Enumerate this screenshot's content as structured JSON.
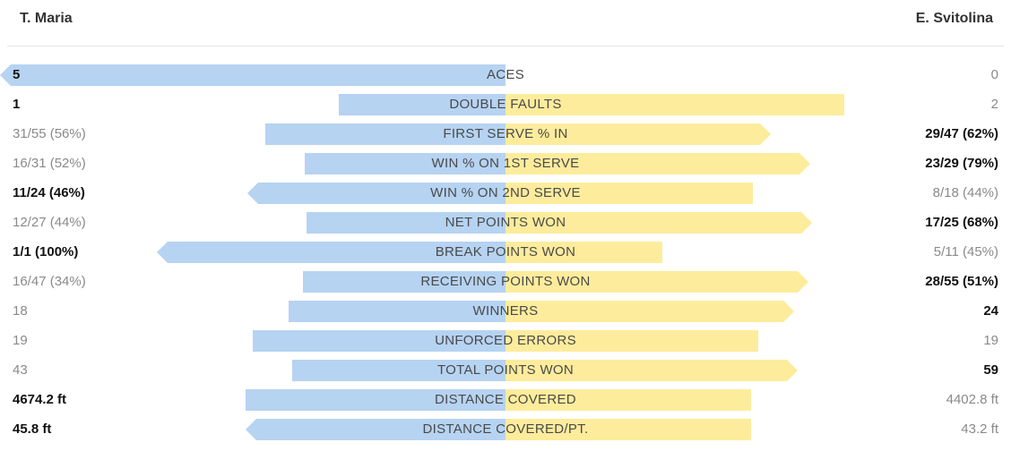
{
  "header": {
    "player_left": "T. Maria",
    "player_right": "E. Svitolina"
  },
  "colors": {
    "left_bar": "#b6d3f2",
    "right_bar": "#fdec9c",
    "leader_text": "#111111",
    "trailer_text": "#8a8a8a"
  },
  "chart_data": {
    "type": "bar",
    "layout": "diverging-horizontal",
    "series": [
      {
        "name": "T. Maria"
      },
      {
        "name": "E. Svitolina"
      }
    ],
    "stats": [
      {
        "label": "ACES",
        "left": "5",
        "right": "0",
        "left_share": 1.0,
        "right_share": 0.0,
        "leader": "left",
        "arrow": "left"
      },
      {
        "label": "DOUBLE FAULTS",
        "left": "1",
        "right": "2",
        "left_share": 0.33,
        "right_share": 0.67,
        "leader": "left",
        "arrow": "none"
      },
      {
        "label": "FIRST SERVE % IN",
        "left": "31/55 (56%)",
        "right": "29/47 (62%)",
        "left_share": 0.475,
        "right_share": 0.525,
        "leader": "right",
        "arrow": "right"
      },
      {
        "label": "WIN % ON 1ST SERVE",
        "left": "16/31 (52%)",
        "right": "23/29 (79%)",
        "left_share": 0.397,
        "right_share": 0.603,
        "leader": "right",
        "arrow": "right"
      },
      {
        "label": "WIN % ON 2ND SERVE",
        "left": "11/24 (46%)",
        "right": "8/18 (44%)",
        "left_share": 0.511,
        "right_share": 0.489,
        "leader": "left",
        "arrow": "left"
      },
      {
        "label": "NET POINTS WON",
        "left": "12/27 (44%)",
        "right": "17/25 (68%)",
        "left_share": 0.393,
        "right_share": 0.607,
        "leader": "right",
        "arrow": "right"
      },
      {
        "label": "BREAK POINTS WON",
        "left": "1/1 (100%)",
        "right": "5/11 (45%)",
        "left_share": 0.69,
        "right_share": 0.31,
        "leader": "left",
        "arrow": "left"
      },
      {
        "label": "RECEIVING POINTS WON",
        "left": "16/47 (34%)",
        "right": "28/55 (51%)",
        "left_share": 0.4,
        "right_share": 0.6,
        "leader": "right",
        "arrow": "right"
      },
      {
        "label": "WINNERS",
        "left": "18",
        "right": "24",
        "left_share": 0.429,
        "right_share": 0.571,
        "leader": "right",
        "arrow": "right"
      },
      {
        "label": "UNFORCED ERRORS",
        "left": "19",
        "right": "19",
        "left_share": 0.5,
        "right_share": 0.5,
        "leader": "none",
        "arrow": "none"
      },
      {
        "label": "TOTAL POINTS WON",
        "left": "43",
        "right": "59",
        "left_share": 0.422,
        "right_share": 0.578,
        "leader": "right",
        "arrow": "right"
      },
      {
        "label": "DISTANCE COVERED",
        "left": "4674.2 ft",
        "right": "4402.8 ft",
        "left_share": 0.515,
        "right_share": 0.485,
        "leader": "left",
        "arrow": "none"
      },
      {
        "label": "DISTANCE COVERED/PT.",
        "left": "45.8 ft",
        "right": "43.2 ft",
        "left_share": 0.515,
        "right_share": 0.485,
        "leader": "left",
        "arrow": "left"
      }
    ]
  }
}
